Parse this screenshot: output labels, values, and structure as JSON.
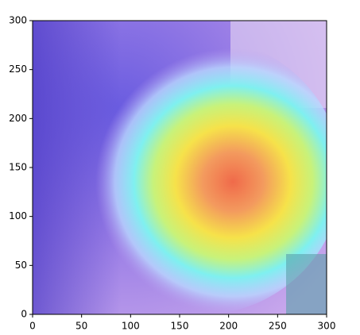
{
  "chart_data": {
    "type": "image",
    "xlim": [
      0,
      300
    ],
    "ylim": [
      0,
      300
    ],
    "xticks": [
      0,
      50,
      100,
      150,
      200,
      250,
      300
    ],
    "yticks": [
      0,
      50,
      100,
      150,
      200,
      250,
      300
    ]
  }
}
